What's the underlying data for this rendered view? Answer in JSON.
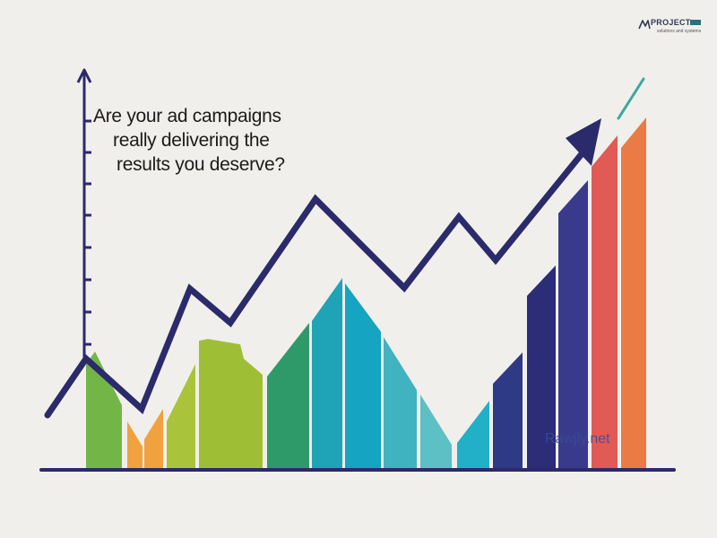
{
  "headline": {
    "line1": "Are your ad campaigns",
    "line2": "really delivering the",
    "line3": "results you deserve?"
  },
  "logo": {
    "brand": "PROJECT",
    "tagline": "solutions and systems"
  },
  "watermark": "Rawjly.net",
  "colors": {
    "background": "#f1efeb",
    "axis": "#2b2a6b",
    "trend_line": "#2b2a6b",
    "accent_dash": "#3aa9a0"
  }
}
